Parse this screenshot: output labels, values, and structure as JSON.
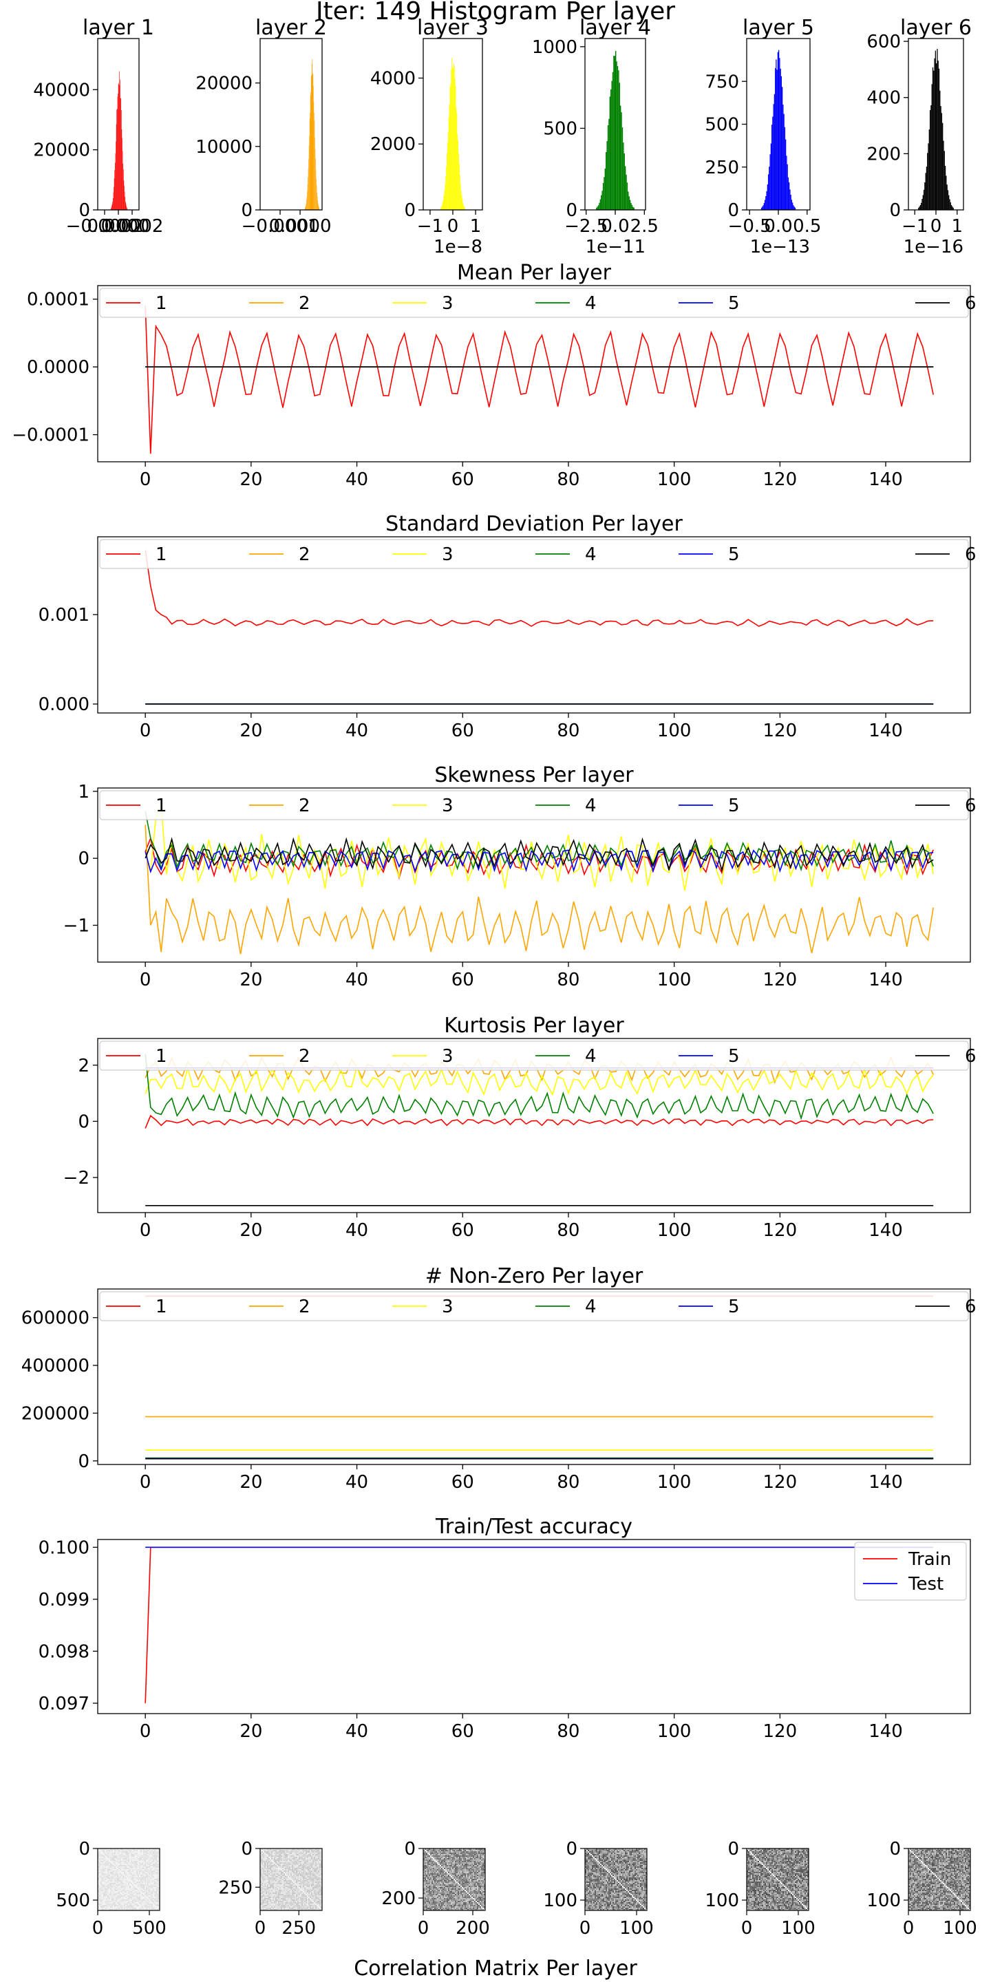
{
  "figure": {
    "title": "Iter: 149 Histogram Per layer",
    "correlation_title": "Correlation Matrix Per layer"
  },
  "colors": {
    "layer1": "#ff0000",
    "layer2": "#ffa500",
    "layer3": "#ffff00",
    "layer4": "#008000",
    "layer5": "#0000ff",
    "layer6": "#000000",
    "train": "#ff0000",
    "test": "#0000ff"
  },
  "chart_data": [
    {
      "type": "bar",
      "kind": "histogram",
      "title": "layer 1",
      "color": "#ff0000",
      "xlim": [
        -0.0003,
        0.0003
      ],
      "xticks": [
        "−0.0002",
        "0.0000",
        "0.0002"
      ],
      "ylim": [
        0,
        57000
      ],
      "yticks": [
        0,
        20000,
        40000
      ],
      "peak": 47000,
      "center": 1e-05,
      "spread": 4e-05,
      "scale_note": ""
    },
    {
      "type": "bar",
      "kind": "histogram",
      "title": "layer 2",
      "color": "#ffa500",
      "xlim": [
        -0.0002,
        0.00011
      ],
      "xticks": [
        "−0.0001",
        "0.0000"
      ],
      "ylim": [
        0,
        27000
      ],
      "yticks": [
        0,
        10000,
        20000
      ],
      "peak": 24000,
      "center": 6e-05,
      "spread": 1.2e-05,
      "scale_note": ""
    },
    {
      "type": "bar",
      "kind": "histogram",
      "title": "layer 3",
      "color": "#ffff00",
      "xlim": [
        -1.3,
        1.3
      ],
      "xticks": [
        "−1",
        "0",
        "1"
      ],
      "ylim": [
        0,
        5200
      ],
      "yticks": [
        0,
        2000,
        4000
      ],
      "peak": 4900,
      "center": 0,
      "spread": 0.18,
      "scale_note": "1e−8"
    },
    {
      "type": "bar",
      "kind": "histogram",
      "title": "layer 4",
      "color": "#008000",
      "xlim": [
        -2.6,
        2.6
      ],
      "xticks": [
        "−2.5",
        "0.0",
        "2.5"
      ],
      "ylim": [
        0,
        1050
      ],
      "yticks": [
        0,
        500,
        1000
      ],
      "peak": 990,
      "center": 0,
      "spread": 0.55,
      "scale_note": "1e−11"
    },
    {
      "type": "bar",
      "kind": "histogram",
      "title": "layer 5",
      "color": "#0000ff",
      "xlim": [
        -0.55,
        0.55
      ],
      "xticks": [
        "−0.5",
        "0.0",
        "0.5"
      ],
      "ylim": [
        0,
        1000
      ],
      "yticks": [
        0,
        250,
        500,
        750
      ],
      "peak": 950,
      "center": 0,
      "spread": 0.1,
      "scale_note": "1e−13"
    },
    {
      "type": "bar",
      "kind": "histogram",
      "title": "layer 6",
      "color": "#000000",
      "xlim": [
        -1.3,
        1.3
      ],
      "xticks": [
        "−1",
        "0",
        "1"
      ],
      "ylim": [
        0,
        610
      ],
      "yticks": [
        0,
        200,
        400,
        600
      ],
      "peak": 590,
      "center": 0,
      "spread": 0.28,
      "scale_note": "1e−16"
    },
    {
      "type": "line",
      "title": "Mean Per layer",
      "xlim": [
        -9,
        156
      ],
      "xticks": [
        0,
        20,
        40,
        60,
        80,
        100,
        120,
        140
      ],
      "ylim": [
        -0.00014,
        0.00012
      ],
      "yticks": [
        -0.0001,
        0.0,
        0.0001
      ],
      "ytick_labels": [
        "−0.0001",
        "0.0000",
        "0.0001"
      ],
      "legend": [
        "1",
        "2",
        "3",
        "4",
        "5",
        "6"
      ],
      "legend_position": "top (6 columns)",
      "x_max": 149,
      "series": [
        {
          "name": "1",
          "color": "#ff0000",
          "start": [
            9e-05,
            -0.000128,
            6e-05
          ],
          "amp": 5.8e-05,
          "period": 6.5,
          "offset": 0.0,
          "noise": 2.5e-06
        },
        {
          "name": "2",
          "color": "#ffa500",
          "start": [],
          "amp": 0,
          "period": 6.5,
          "offset": 0.0,
          "noise": 0
        },
        {
          "name": "3",
          "color": "#ffff00",
          "start": [],
          "amp": 0,
          "period": 6.5,
          "offset": 0.0,
          "noise": 0
        },
        {
          "name": "4",
          "color": "#008000",
          "start": [],
          "amp": 0,
          "period": 6.5,
          "offset": 0.0,
          "noise": 0
        },
        {
          "name": "5",
          "color": "#0000ff",
          "start": [],
          "amp": 0,
          "period": 6.5,
          "offset": 0.0,
          "noise": 0
        },
        {
          "name": "6",
          "color": "#000000",
          "start": [],
          "amp": 0,
          "period": 6.5,
          "offset": 0.0,
          "noise": 0
        }
      ]
    },
    {
      "type": "line",
      "title": "Standard Deviation Per layer",
      "xlim": [
        -9,
        156
      ],
      "xticks": [
        0,
        20,
        40,
        60,
        80,
        100,
        120,
        140
      ],
      "ylim": [
        -0.0001,
        0.00187
      ],
      "yticks": [
        0.0,
        0.001
      ],
      "ytick_labels": [
        "0.000",
        "0.001"
      ],
      "legend": [
        "1",
        "2",
        "3",
        "4",
        "5",
        "6"
      ],
      "legend_position": "top (6 columns)",
      "x_max": 149,
      "series": [
        {
          "name": "1",
          "color": "#ff0000",
          "start": [
            0.00172,
            0.00132,
            0.00105,
            0.001,
            0.00097
          ],
          "amp": 3e-05,
          "period": 4.3,
          "offset": 0.00091,
          "noise": 1.5e-05
        },
        {
          "name": "2",
          "color": "#ffa500",
          "start": [],
          "amp": 0,
          "period": 4,
          "offset": 0.0,
          "noise": 0
        },
        {
          "name": "3",
          "color": "#ffff00",
          "start": [],
          "amp": 0,
          "period": 4,
          "offset": 0.0,
          "noise": 0
        },
        {
          "name": "4",
          "color": "#008000",
          "start": [],
          "amp": 0,
          "period": 4,
          "offset": 0.0,
          "noise": 0
        },
        {
          "name": "5",
          "color": "#0000ff",
          "start": [],
          "amp": 0,
          "period": 4,
          "offset": 0.0,
          "noise": 0
        },
        {
          "name": "6",
          "color": "#000000",
          "start": [],
          "amp": 0,
          "period": 4,
          "offset": 0.0,
          "noise": 0
        }
      ]
    },
    {
      "type": "line",
      "title": "Skewness Per layer",
      "xlim": [
        -9,
        156
      ],
      "xticks": [
        0,
        20,
        40,
        60,
        80,
        100,
        120,
        140
      ],
      "ylim": [
        -1.55,
        1.05
      ],
      "yticks": [
        -1,
        0,
        1
      ],
      "ytick_labels": [
        "−1",
        "0",
        "1"
      ],
      "legend": [
        "1",
        "2",
        "3",
        "4",
        "5",
        "6"
      ],
      "legend_position": "top (6 columns)",
      "x_max": 149,
      "series": [
        {
          "name": "1",
          "color": "#ff0000",
          "start": [
            0.1,
            0.3,
            -0.1
          ],
          "amp": 0.2,
          "period": 3.2,
          "offset": -0.05,
          "noise": 0.06
        },
        {
          "name": "2",
          "color": "#ffa500",
          "start": [
            0.5,
            -1.0,
            -0.8,
            -1.4,
            -0.6
          ],
          "amp": 0.32,
          "period": 3.6,
          "offset": -1.0,
          "noise": 0.12
        },
        {
          "name": "3",
          "color": "#ffff00",
          "start": [
            0.1,
            -0.2,
            0.6,
            0.8
          ],
          "amp": 0.34,
          "period": 3.4,
          "offset": -0.05,
          "noise": 0.12
        },
        {
          "name": "4",
          "color": "#008000",
          "start": [
            0.7,
            0.3
          ],
          "amp": 0.18,
          "period": 3.1,
          "offset": 0.05,
          "noise": 0.05
        },
        {
          "name": "5",
          "color": "#0000ff",
          "start": [
            0.1,
            -0.2,
            0.0
          ],
          "amp": 0.16,
          "period": 3.0,
          "offset": 0.02,
          "noise": 0.05
        },
        {
          "name": "6",
          "color": "#000000",
          "start": [
            0.0,
            0.2
          ],
          "amp": 0.2,
          "period": 3.3,
          "offset": 0.05,
          "noise": 0.06
        }
      ]
    },
    {
      "type": "line",
      "title": "Kurtosis Per layer",
      "xlim": [
        -9,
        156
      ],
      "xticks": [
        0,
        20,
        40,
        60,
        80,
        100,
        120,
        140
      ],
      "ylim": [
        -3.25,
        2.95
      ],
      "yticks": [
        -2,
        0,
        2
      ],
      "ytick_labels": [
        "−2",
        "0",
        "2"
      ],
      "legend": [
        "1",
        "2",
        "3",
        "4",
        "5",
        "6"
      ],
      "legend_position": "top (6 columns)",
      "x_max": 149,
      "series": [
        {
          "name": "1",
          "color": "#ff0000",
          "start": [
            -0.25,
            0.2
          ],
          "amp": 0.1,
          "period": 3.0,
          "offset": 0.0,
          "noise": 0.05
        },
        {
          "name": "2",
          "color": "#ffa500",
          "start": [],
          "amp": 0.35,
          "period": 3.4,
          "offset": 1.85,
          "noise": 0.12
        },
        {
          "name": "3",
          "color": "#ffff00",
          "start": [],
          "amp": 0.4,
          "period": 3.2,
          "offset": 1.4,
          "noise": 0.15
        },
        {
          "name": "4",
          "color": "#008000",
          "start": [
            2.4,
            0.5,
            0.3
          ],
          "amp": 0.4,
          "period": 3.1,
          "offset": 0.55,
          "noise": 0.1
        },
        {
          "name": "5",
          "color": "#0000ff",
          "start": [],
          "amp": 0,
          "period": 3,
          "offset": 1.9,
          "noise": 0
        },
        {
          "name": "6",
          "color": "#000000",
          "start": [],
          "amp": 0,
          "period": 3,
          "offset": -3.0,
          "noise": 0
        }
      ]
    },
    {
      "type": "line",
      "title": "# Non-Zero Per layer",
      "xlim": [
        -9,
        156
      ],
      "xticks": [
        0,
        20,
        40,
        60,
        80,
        100,
        120,
        140
      ],
      "ylim": [
        -15000,
        720000
      ],
      "yticks": [
        0,
        200000,
        400000,
        600000
      ],
      "ytick_labels": [
        "0",
        "200000",
        "400000",
        "600000"
      ],
      "legend": [
        "1",
        "2",
        "3",
        "4",
        "5",
        "6"
      ],
      "legend_position": "top (6 columns)",
      "x_max": 149,
      "series": [
        {
          "name": "1",
          "color": "#ff0000",
          "start": [],
          "amp": 0,
          "period": 1,
          "offset": 690000,
          "noise": 0
        },
        {
          "name": "2",
          "color": "#ffa500",
          "start": [],
          "amp": 0,
          "period": 1,
          "offset": 185000,
          "noise": 0
        },
        {
          "name": "3",
          "color": "#ffff00",
          "start": [],
          "amp": 0,
          "period": 1,
          "offset": 45000,
          "noise": 0
        },
        {
          "name": "4",
          "color": "#008000",
          "start": [],
          "amp": 0,
          "period": 1,
          "offset": 12000,
          "noise": 0
        },
        {
          "name": "5",
          "color": "#0000ff",
          "start": [],
          "amp": 0,
          "period": 1,
          "offset": 10000,
          "noise": 0
        },
        {
          "name": "6",
          "color": "#000000",
          "start": [],
          "amp": 0,
          "period": 1,
          "offset": 9000,
          "noise": 0
        }
      ]
    },
    {
      "type": "line",
      "title": "Train/Test accuracy",
      "xlim": [
        -9,
        156
      ],
      "xticks": [
        0,
        20,
        40,
        60,
        80,
        100,
        120,
        140
      ],
      "ylim": [
        0.0968,
        0.10015
      ],
      "yticks": [
        0.097,
        0.098,
        0.099,
        0.1
      ],
      "ytick_labels": [
        "0.097",
        "0.098",
        "0.099",
        "0.100"
      ],
      "legend": [
        "Train",
        "Test"
      ],
      "legend_position": "upper right",
      "x_max": 149,
      "series": [
        {
          "name": "Train",
          "color": "#ff0000",
          "start": [
            0.097
          ],
          "amp": 0,
          "period": 1,
          "offset": 0.1,
          "noise": 0
        },
        {
          "name": "Test",
          "color": "#0000ff",
          "start": [],
          "amp": 0,
          "period": 1,
          "offset": 0.1,
          "noise": 0
        }
      ]
    },
    {
      "type": "heatmap",
      "title": "",
      "n": 600,
      "xticks": [
        0,
        500
      ],
      "yticks": [
        0,
        500
      ],
      "density": 0.12,
      "diag": true
    },
    {
      "type": "heatmap",
      "title": "",
      "n": 400,
      "xticks": [
        0,
        250
      ],
      "yticks": [
        0,
        250
      ],
      "density": 0.2,
      "diag": true
    },
    {
      "type": "heatmap",
      "title": "",
      "n": 250,
      "xticks": [
        0,
        200
      ],
      "yticks": [
        0,
        200
      ],
      "density": 0.55,
      "diag": true
    },
    {
      "type": "heatmap",
      "title": "",
      "n": 120,
      "xticks": [
        0,
        100
      ],
      "yticks": [
        0,
        100
      ],
      "density": 0.6,
      "diag": true
    },
    {
      "type": "heatmap",
      "title": "",
      "n": 120,
      "xticks": [
        0,
        100
      ],
      "yticks": [
        0,
        100
      ],
      "density": 0.62,
      "diag": true
    },
    {
      "type": "heatmap",
      "title": "",
      "n": 120,
      "xticks": [
        0,
        100
      ],
      "yticks": [
        0,
        100
      ],
      "density": 0.6,
      "diag": true
    }
  ]
}
